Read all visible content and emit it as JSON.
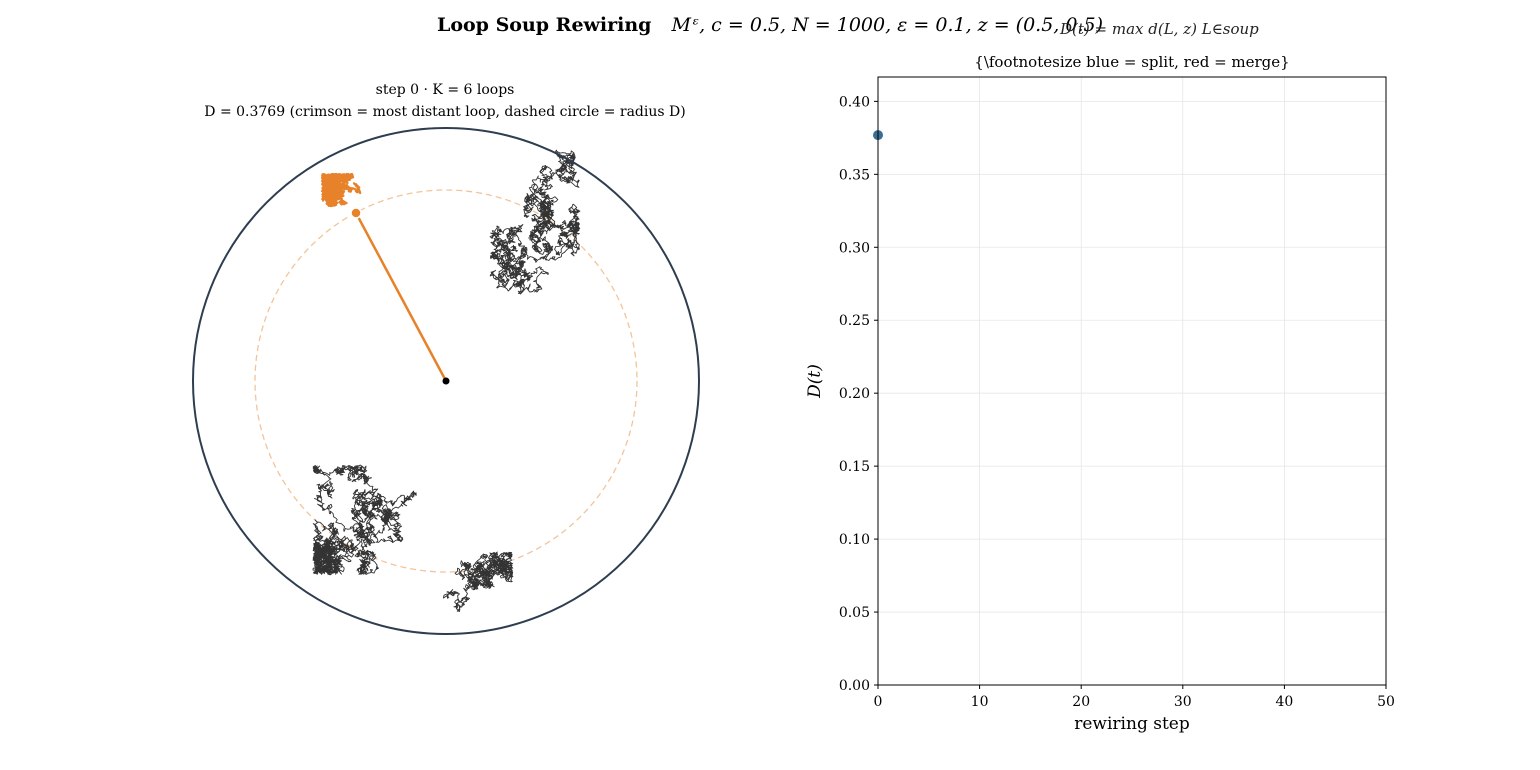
{
  "header": {
    "title_bold": "Loop Soup Rewiring",
    "title_params": "Mᵋ,   c = 0.5,   N = 1000,   ε = 0.1,   z = (0.5, 0.5)"
  },
  "left_panel": {
    "title_line1": "step 0   ·   K = 6 loops",
    "title_line2": "D = 0.3769   (crimson = most distant loop,  dashed circle = radius D)",
    "radius_D": 0.3769,
    "colors": {
      "boundary": "#2e3e50",
      "distant_loop": "#e8822a",
      "loops": "#333333",
      "dashed_circle": "#f3c49a",
      "center": "#000000"
    }
  },
  "right_panel": {
    "title_line1": "D(t) = max d(L, z)   L∈soup",
    "title_line2": "{\\footnotesize blue = split,  red = merge}"
  },
  "chart_data": {
    "type": "scatter",
    "xlabel": "rewiring step",
    "ylabel": "D(t)",
    "xlim": [
      0,
      50
    ],
    "ylim": [
      0,
      0.42
    ],
    "xticks": [
      0,
      10,
      20,
      30,
      40,
      50
    ],
    "yticks": [
      0.0,
      0.05,
      0.1,
      0.15,
      0.2,
      0.25,
      0.3,
      0.35,
      0.4
    ],
    "grid": true,
    "series": [
      {
        "x": [
          0
        ],
        "y": [
          0.3769
        ],
        "color": "#3b6e94"
      }
    ]
  }
}
